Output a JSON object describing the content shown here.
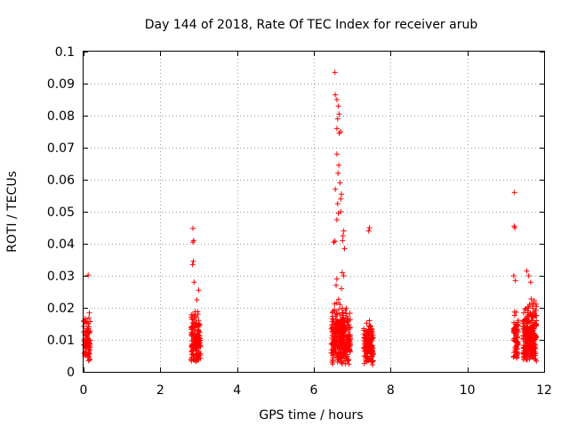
{
  "chart_data": {
    "type": "scatter",
    "title": "Day 144 of 2018, Rate Of TEC Index for receiver arub",
    "xlabel": "GPS time / hours",
    "ylabel": "ROTI / TECUs",
    "xlim": [
      0,
      12
    ],
    "ylim": [
      0,
      0.1
    ],
    "grid": true,
    "marker": "+",
    "color": "#ff0000",
    "xticks": [
      "0",
      "2",
      "4",
      "6",
      "8",
      "10",
      "12"
    ],
    "yticks": [
      "0",
      "0.01",
      "0.02",
      "0.03",
      "0.04",
      "0.05",
      "0.06",
      "0.07",
      "0.08",
      "0.09",
      "0.1"
    ],
    "series": [
      {
        "name": "ROTI",
        "clusters": [
          {
            "x_start": 0.0,
            "x_end": 0.17,
            "y_min": 0.003,
            "y_max": 0.019,
            "count": 90
          },
          {
            "x_start": 2.8,
            "x_end": 3.05,
            "y_min": 0.003,
            "y_max": 0.021,
            "count": 160
          },
          {
            "x_start": 6.45,
            "x_end": 6.95,
            "y_min": 0.002,
            "y_max": 0.023,
            "count": 330
          },
          {
            "x_start": 7.3,
            "x_end": 7.55,
            "y_min": 0.002,
            "y_max": 0.018,
            "count": 150
          },
          {
            "x_start": 11.2,
            "x_end": 11.33,
            "y_min": 0.004,
            "y_max": 0.02,
            "count": 70
          },
          {
            "x_start": 11.45,
            "x_end": 11.8,
            "y_min": 0.003,
            "y_max": 0.024,
            "count": 260
          }
        ],
        "points": [
          [
            0.12,
            0.0302
          ],
          [
            2.85,
            0.0448
          ],
          [
            2.87,
            0.041
          ],
          [
            2.85,
            0.0405
          ],
          [
            2.86,
            0.0345
          ],
          [
            2.84,
            0.0335
          ],
          [
            2.88,
            0.028
          ],
          [
            3.0,
            0.0255
          ],
          [
            2.95,
            0.0225
          ],
          [
            6.55,
            0.0935
          ],
          [
            6.56,
            0.0865
          ],
          [
            6.6,
            0.085
          ],
          [
            6.64,
            0.083
          ],
          [
            6.66,
            0.0805
          ],
          [
            6.62,
            0.079
          ],
          [
            6.6,
            0.076
          ],
          [
            6.66,
            0.0745
          ],
          [
            6.7,
            0.075
          ],
          [
            6.6,
            0.068
          ],
          [
            6.65,
            0.0645
          ],
          [
            6.63,
            0.062
          ],
          [
            6.68,
            0.059
          ],
          [
            6.56,
            0.057
          ],
          [
            6.72,
            0.0555
          ],
          [
            6.7,
            0.054
          ],
          [
            6.62,
            0.0525
          ],
          [
            6.7,
            0.05
          ],
          [
            6.64,
            0.0495
          ],
          [
            6.6,
            0.0475
          ],
          [
            6.55,
            0.0408
          ],
          [
            6.52,
            0.0405
          ],
          [
            6.78,
            0.044
          ],
          [
            6.76,
            0.0425
          ],
          [
            6.75,
            0.041
          ],
          [
            6.8,
            0.0385
          ],
          [
            6.74,
            0.031
          ],
          [
            6.78,
            0.03
          ],
          [
            6.6,
            0.029
          ],
          [
            6.58,
            0.027
          ],
          [
            6.72,
            0.026
          ],
          [
            7.45,
            0.045
          ],
          [
            7.43,
            0.044
          ],
          [
            11.23,
            0.056
          ],
          [
            11.22,
            0.0455
          ],
          [
            11.24,
            0.045
          ],
          [
            11.21,
            0.03
          ],
          [
            11.25,
            0.0285
          ],
          [
            11.55,
            0.0315
          ],
          [
            11.6,
            0.03
          ],
          [
            11.65,
            0.028
          ]
        ]
      }
    ]
  }
}
